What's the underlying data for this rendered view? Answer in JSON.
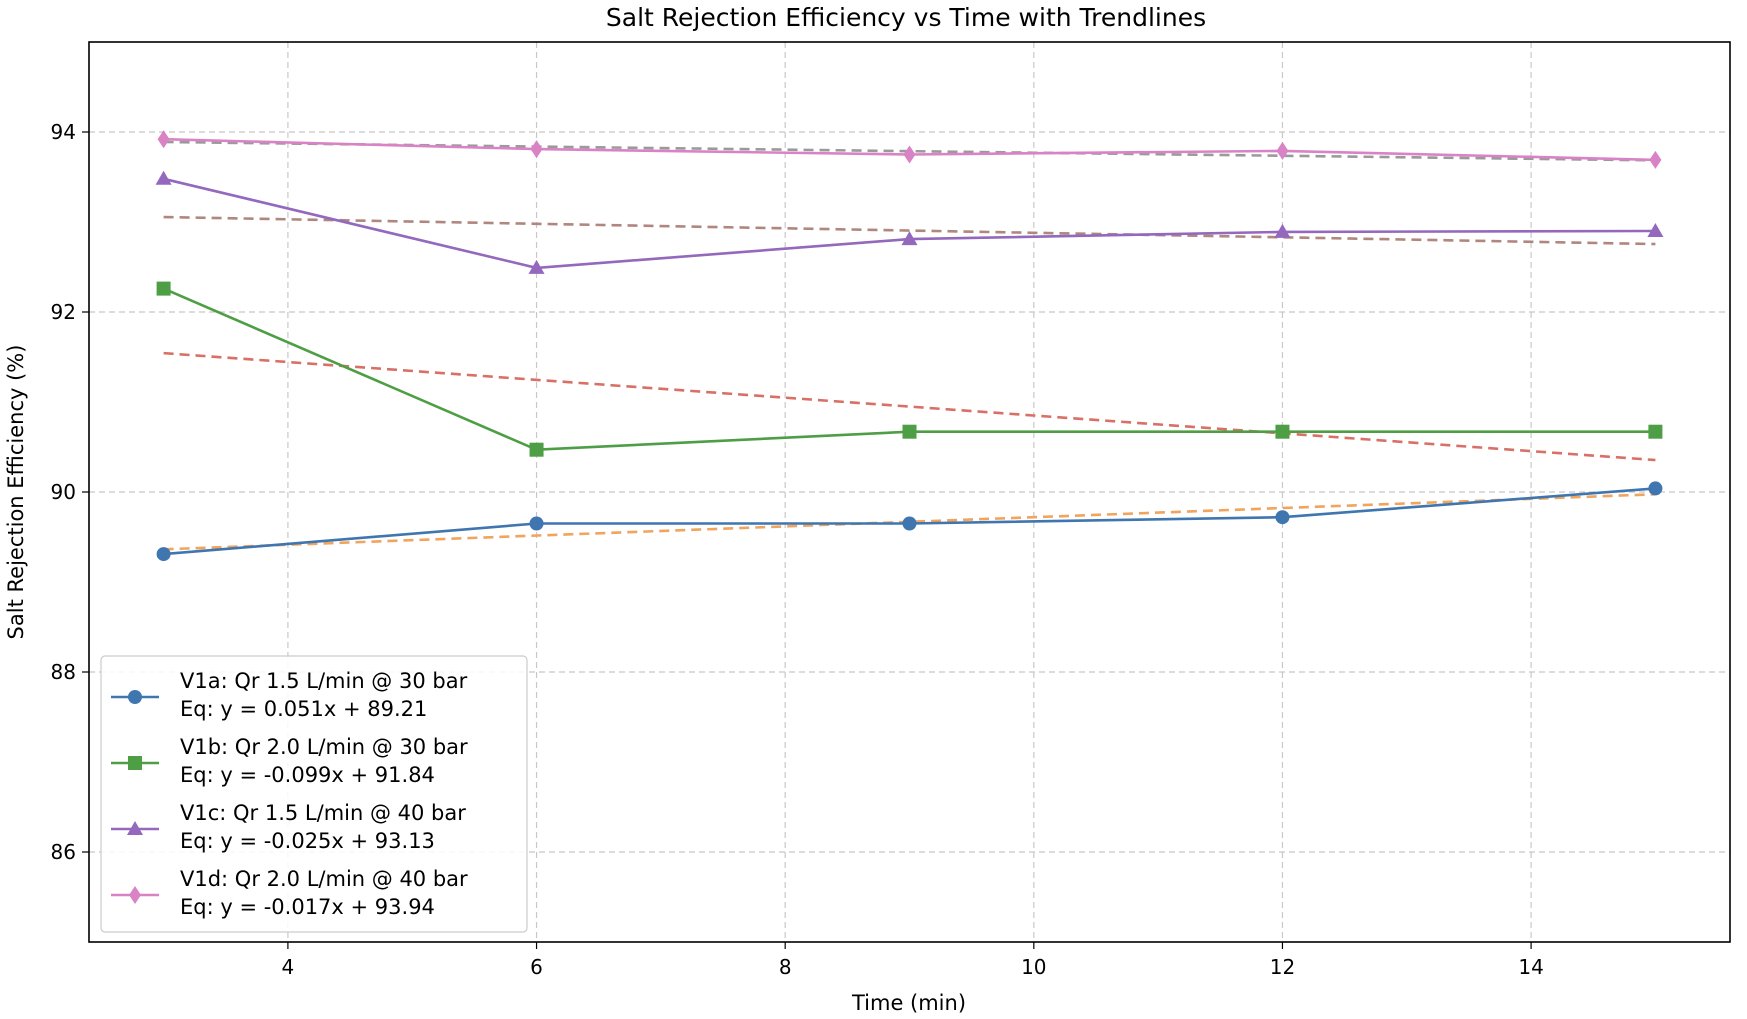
{
  "chart_data": {
    "type": "line",
    "title": "Salt Rejection Efficiency vs Time with Trendlines",
    "xlabel": "Time (min)",
    "ylabel": "Salt Rejection Efficiency (%)",
    "xlim": [
      2.4,
      15.6
    ],
    "ylim": [
      85.0,
      95.0
    ],
    "xticks": [
      4,
      6,
      8,
      10,
      12,
      14
    ],
    "yticks": [
      86,
      88,
      90,
      92,
      94
    ],
    "x_tick_labels": [
      "4",
      "6",
      "8",
      "10",
      "12",
      "14"
    ],
    "y_tick_labels": [
      "86",
      "88",
      "90",
      "92",
      "94"
    ],
    "grid": true,
    "legend_position": "lower-left",
    "x": [
      3,
      6,
      9,
      12,
      15
    ],
    "series": [
      {
        "name": "V1a: Qr 1.5 L/min @ 30 bar",
        "equation": "Eq: y = 0.051x + 89.21",
        "values": [
          89.31,
          89.65,
          89.65,
          89.72,
          90.04
        ],
        "marker": "circle",
        "color": "#3f76b0",
        "trend_color": "#f0a45e",
        "trend": {
          "slope": 0.051,
          "intercept": 89.21
        }
      },
      {
        "name": "V1b: Qr 2.0 L/min @ 30 bar",
        "equation": "Eq: y = -0.099x + 91.84",
        "values": [
          92.26,
          90.47,
          90.67,
          90.67,
          90.67
        ],
        "marker": "square",
        "color": "#4e9e45",
        "trend_color": "#d87068",
        "trend": {
          "slope": -0.099,
          "intercept": 91.84
        }
      },
      {
        "name": "V1c: Qr 1.5 L/min @ 40 bar",
        "equation": "Eq: y = -0.025x + 93.13",
        "values": [
          93.48,
          92.49,
          92.81,
          92.89,
          92.9
        ],
        "marker": "triangle",
        "color": "#9368bd",
        "trend_color": "#b0877e",
        "trend": {
          "slope": -0.025,
          "intercept": 93.13
        }
      },
      {
        "name": "V1d: Qr 2.0 L/min @ 40 bar",
        "equation": "Eq: y = -0.017x + 93.94",
        "values": [
          93.92,
          93.81,
          93.75,
          93.79,
          93.69
        ],
        "marker": "diamond",
        "color": "#d983c6",
        "trend_color": "#9a9a9a",
        "trend": {
          "slope": -0.017,
          "intercept": 93.94
        }
      }
    ]
  }
}
